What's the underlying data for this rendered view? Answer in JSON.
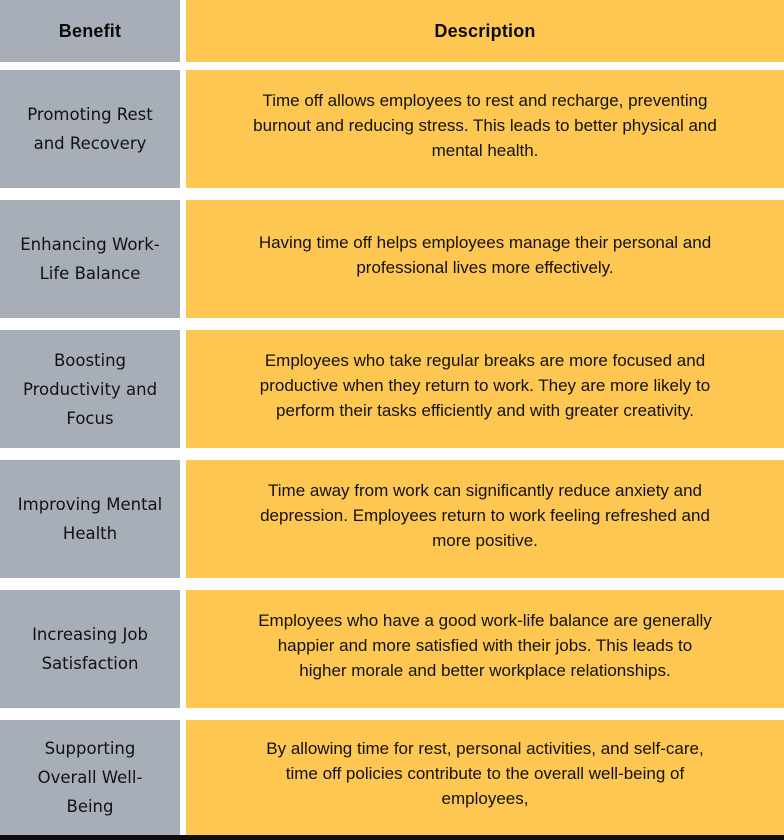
{
  "colors": {
    "benefit_column_bg": "#a8aeb8",
    "description_column_bg": "#fdc752",
    "gap_color": "#ffffff",
    "text_color": "#121212",
    "bottom_border_color": "#0e0e0e"
  },
  "table": {
    "headers": {
      "benefit": "Benefit",
      "description": "Description"
    },
    "rows": [
      {
        "benefit": "Promoting Rest\nand Recovery",
        "description": "Time off allows employees to rest and recharge, preventing\nburnout and reducing stress. This leads to better physical and\nmental health."
      },
      {
        "benefit": "Enhancing Work-\nLife Balance",
        "description": "Having time off helps employees manage their personal and\nprofessional lives more effectively."
      },
      {
        "benefit": "Boosting\nProductivity and\nFocus",
        "description": "Employees who take regular breaks are more focused and\nproductive when they return to work. They are more likely to\nperform their tasks efficiently and with greater creativity."
      },
      {
        "benefit": "Improving Mental\nHealth",
        "description": "Time away from work can significantly reduce anxiety and\ndepression. Employees return to work feeling refreshed and\nmore positive."
      },
      {
        "benefit": "Increasing Job\nSatisfaction",
        "description": "Employees who have a good work-life balance are generally\nhappier and more satisfied with their jobs. This leads to\nhigher morale and better workplace relationships."
      },
      {
        "benefit": "Supporting\nOverall Well-\nBeing",
        "description": "By allowing time for rest, personal activities, and self-care,\ntime off policies contribute to the overall well-being of\nemployees,"
      }
    ]
  }
}
